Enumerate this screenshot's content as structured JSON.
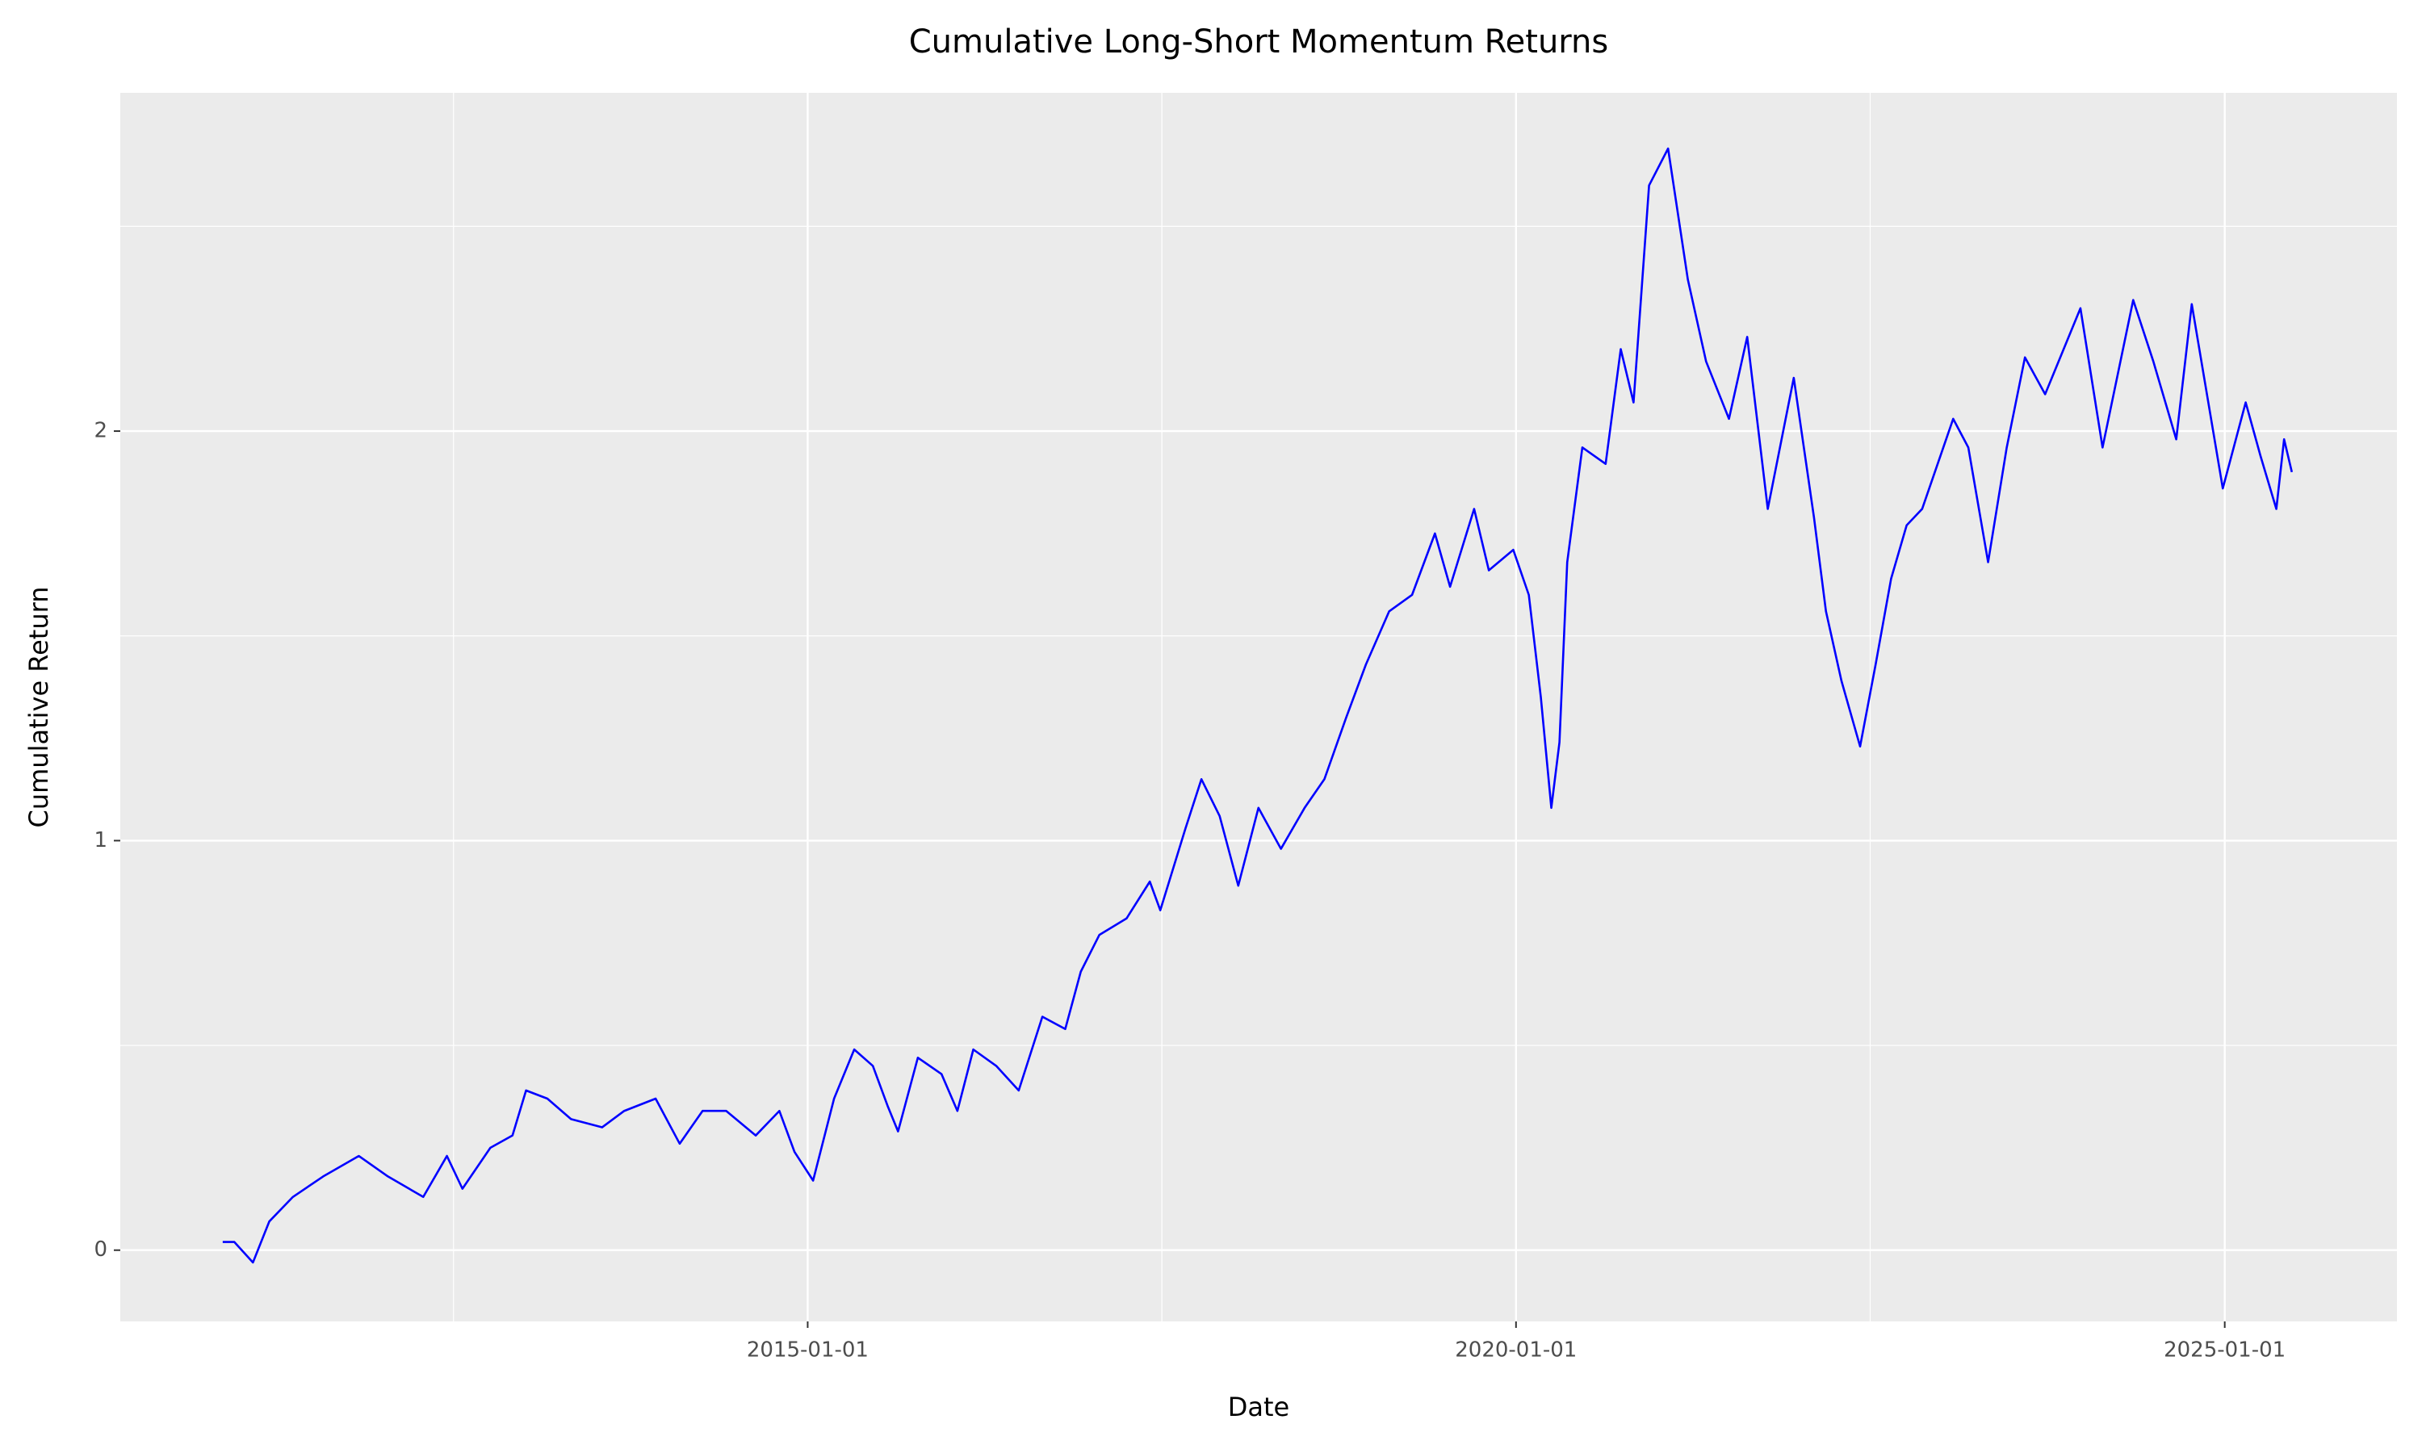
{
  "chart_data": {
    "type": "line",
    "title": "Cumulative Long-Short Momentum Returns",
    "x_label": "Date",
    "y_label": "Cumulative Return",
    "x": [
      "2010-11-15",
      "2010-12-15",
      "2011-02-01",
      "2011-03-15",
      "2011-05-15",
      "2011-08-01",
      "2011-11-01",
      "2012-01-15",
      "2012-04-15",
      "2012-06-15",
      "2012-07-25",
      "2012-10-05",
      "2012-12-01",
      "2013-01-05",
      "2013-03-01",
      "2013-05-01",
      "2013-07-20",
      "2013-09-15",
      "2013-12-05",
      "2014-02-05",
      "2014-04-05",
      "2014-06-05",
      "2014-08-20",
      "2014-10-20",
      "2014-11-28",
      "2015-01-15",
      "2015-03-10",
      "2015-05-01",
      "2015-06-18",
      "2015-07-27",
      "2015-08-22",
      "2015-10-12",
      "2015-12-12",
      "2016-01-22",
      "2016-03-03",
      "2016-05-01",
      "2016-06-28",
      "2016-08-28",
      "2016-10-26",
      "2016-12-05",
      "2017-01-22",
      "2017-04-02",
      "2017-06-01",
      "2017-06-28",
      "2017-09-01",
      "2017-10-12",
      "2017-11-28",
      "2018-01-15",
      "2018-03-08",
      "2018-05-05",
      "2018-07-05",
      "2018-08-25",
      "2018-10-20",
      "2018-12-10",
      "2019-02-08",
      "2019-04-08",
      "2019-06-06",
      "2019-07-15",
      "2019-09-15",
      "2019-10-23",
      "2019-12-25",
      "2020-02-03",
      "2020-03-05",
      "2020-04-01",
      "2020-04-22",
      "2020-05-12",
      "2020-06-20",
      "2020-08-19",
      "2020-09-27",
      "2020-10-30",
      "2020-12-09",
      "2021-01-27",
      "2021-03-19",
      "2021-05-05",
      "2021-07-03",
      "2021-08-19",
      "2021-10-11",
      "2021-12-17",
      "2022-02-07",
      "2022-03-10",
      "2022-04-19",
      "2022-06-06",
      "2022-07-16",
      "2022-08-25",
      "2022-10-04",
      "2022-11-13",
      "2023-02-01",
      "2023-03-12",
      "2023-05-02",
      "2023-06-19",
      "2023-08-05",
      "2023-09-26",
      "2023-12-26",
      "2024-02-21",
      "2024-05-10",
      "2024-07-01",
      "2024-08-29",
      "2024-10-08",
      "2024-12-27",
      "2025-02-24",
      "2025-04-03",
      "2025-05-14",
      "2025-06-03",
      "2025-06-23"
    ],
    "series": [
      {
        "name": "Cumulative Return",
        "color": "#0000ff",
        "values": [
          0.02,
          0.02,
          -0.03,
          0.07,
          0.13,
          0.18,
          0.23,
          0.18,
          0.13,
          0.23,
          0.15,
          0.25,
          0.28,
          0.39,
          0.37,
          0.32,
          0.3,
          0.34,
          0.37,
          0.26,
          0.34,
          0.34,
          0.28,
          0.34,
          0.24,
          0.17,
          0.37,
          0.49,
          0.45,
          0.35,
          0.29,
          0.47,
          0.43,
          0.34,
          0.49,
          0.45,
          0.39,
          0.57,
          0.54,
          0.68,
          0.77,
          0.81,
          0.9,
          0.83,
          1.03,
          1.15,
          1.06,
          0.89,
          1.08,
          0.98,
          1.08,
          1.15,
          1.3,
          1.43,
          1.56,
          1.6,
          1.75,
          1.62,
          1.81,
          1.66,
          1.71,
          1.6,
          1.35,
          1.08,
          1.24,
          1.68,
          1.96,
          1.92,
          2.2,
          2.07,
          2.6,
          2.69,
          2.37,
          2.17,
          2.03,
          2.23,
          1.81,
          2.13,
          1.79,
          1.56,
          1.39,
          1.23,
          1.43,
          1.64,
          1.77,
          1.81,
          2.03,
          1.96,
          1.68,
          1.96,
          2.18,
          2.09,
          2.3,
          1.96,
          2.32,
          2.17,
          1.98,
          2.31,
          1.86,
          2.07,
          1.94,
          1.81,
          1.98,
          1.9
        ]
      }
    ],
    "xlim": [
      "2010-02-24",
      "2026-03-21"
    ],
    "xticks": [
      "2015-01-01",
      "2020-01-01",
      "2025-01-01"
    ],
    "ylim": [
      -0.174,
      2.826
    ],
    "yticks": [
      0,
      1,
      2
    ],
    "grid": true
  }
}
